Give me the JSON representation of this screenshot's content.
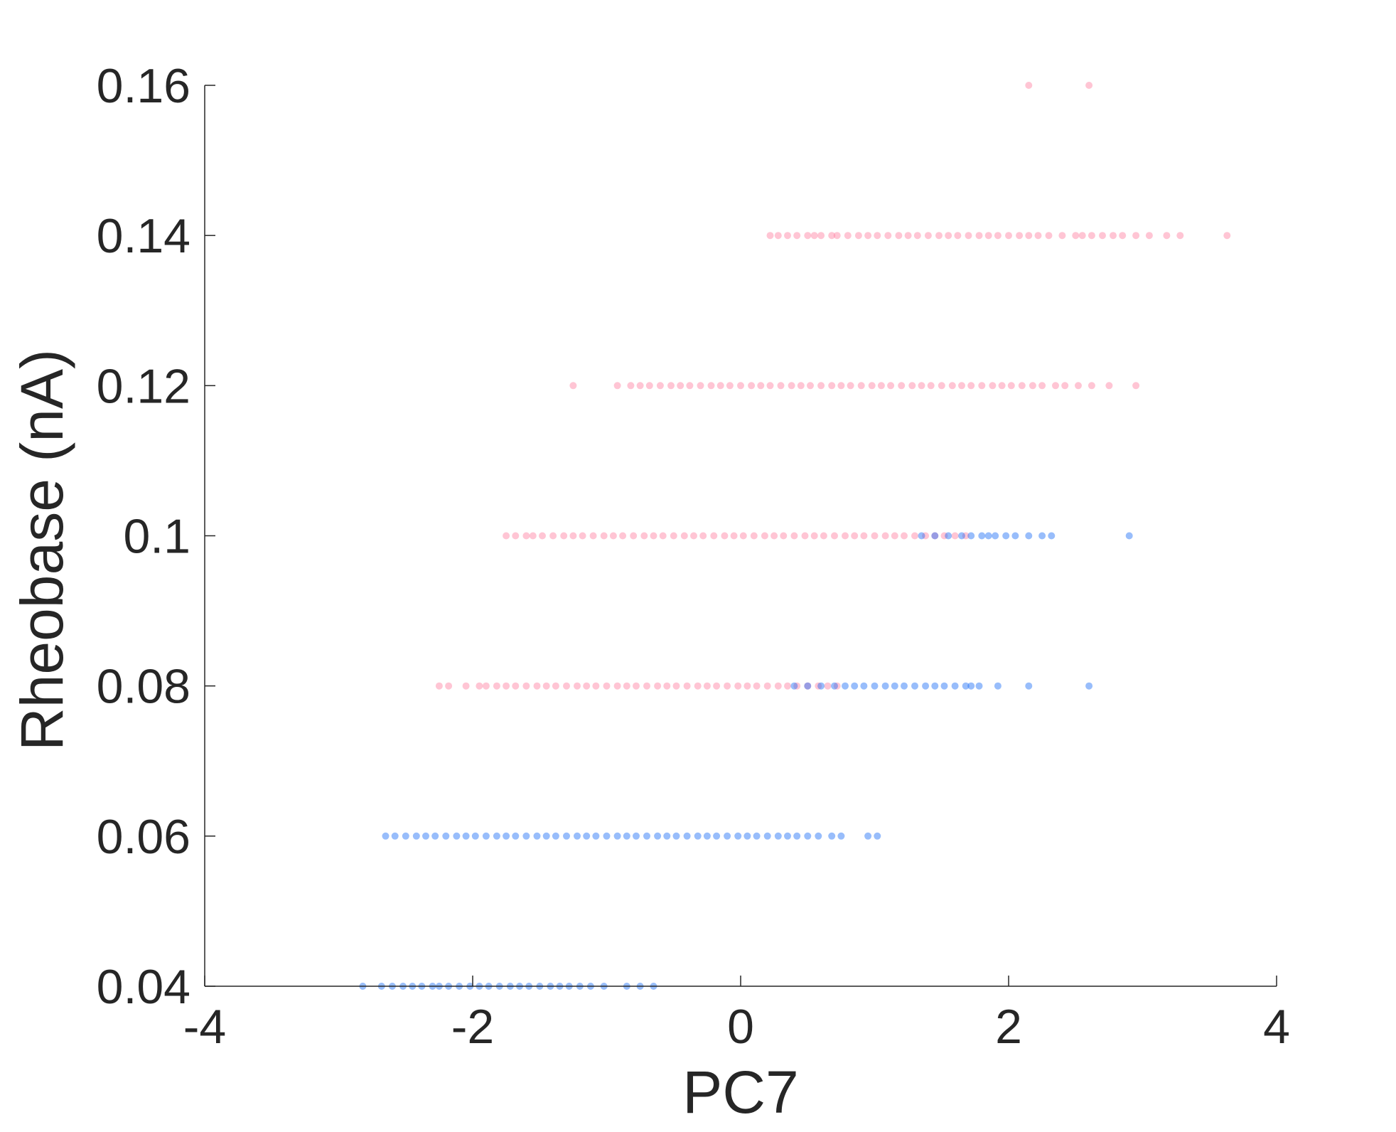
{
  "chart_data": {
    "type": "scatter",
    "title": "",
    "xlabel": "PC7",
    "ylabel": "Rheobase (nA)",
    "xlim": [
      -4,
      4
    ],
    "ylim": [
      0.04,
      0.16
    ],
    "xticks": [
      -4,
      -2,
      0,
      2,
      4
    ],
    "xtick_labels": [
      "-4",
      "-2",
      "0",
      "2",
      "4"
    ],
    "yticks": [
      0.04,
      0.06,
      0.08,
      0.1,
      0.12,
      0.14,
      0.16
    ],
    "ytick_labels": [
      "0.04",
      "0.06",
      "0.08",
      "0.1",
      "0.12",
      "0.14",
      "0.16"
    ],
    "grid": false,
    "legend": "none",
    "series": [
      {
        "color": "#FF7B9C",
        "alpha": 0.2,
        "points_by_level": [
          {
            "y": 0.16,
            "x": [
              2.15,
              2.6
            ]
          },
          {
            "y": 0.14,
            "x": [
              0.22,
              0.28,
              0.35,
              0.42,
              0.5,
              0.55,
              0.6,
              0.68,
              0.72,
              0.8,
              0.88,
              0.95,
              1.02,
              1.1,
              1.18,
              1.25,
              1.32,
              1.4,
              1.48,
              1.55,
              1.62,
              1.7,
              1.78,
              1.85,
              1.92,
              2.0,
              2.08,
              2.15,
              2.22,
              2.3,
              2.4,
              2.5,
              2.55,
              2.62,
              2.7,
              2.78,
              2.85,
              2.95,
              3.05,
              3.18,
              3.28,
              3.63
            ]
          },
          {
            "y": 0.12,
            "x": [
              -1.25,
              -0.92,
              -0.82,
              -0.75,
              -0.68,
              -0.6,
              -0.52,
              -0.45,
              -0.38,
              -0.3,
              -0.22,
              -0.15,
              -0.08,
              0.0,
              0.08,
              0.15,
              0.22,
              0.3,
              0.38,
              0.45,
              0.52,
              0.6,
              0.68,
              0.75,
              0.82,
              0.9,
              0.98,
              1.05,
              1.12,
              1.2,
              1.28,
              1.35,
              1.42,
              1.5,
              1.58,
              1.65,
              1.72,
              1.8,
              1.88,
              1.95,
              2.02,
              2.1,
              2.18,
              2.25,
              2.35,
              2.42,
              2.52,
              2.62,
              2.75,
              2.95
            ]
          },
          {
            "y": 0.1,
            "x": [
              -1.75,
              -1.68,
              -1.6,
              -1.55,
              -1.48,
              -1.4,
              -1.32,
              -1.25,
              -1.18,
              -1.1,
              -1.02,
              -0.95,
              -0.88,
              -0.8,
              -0.72,
              -0.65,
              -0.58,
              -0.5,
              -0.42,
              -0.35,
              -0.28,
              -0.2,
              -0.12,
              -0.05,
              0.02,
              0.1,
              0.18,
              0.25,
              0.32,
              0.4,
              0.48,
              0.55,
              0.62,
              0.7,
              0.78,
              0.85,
              0.92,
              1.0,
              1.08,
              1.15,
              1.22,
              1.3,
              1.38,
              1.45,
              1.52,
              1.6,
              1.68
            ]
          },
          {
            "y": 0.08,
            "x": [
              -2.25,
              -2.18,
              -2.05,
              -1.95,
              -1.9,
              -1.82,
              -1.75,
              -1.68,
              -1.6,
              -1.52,
              -1.45,
              -1.38,
              -1.3,
              -1.22,
              -1.15,
              -1.08,
              -1.0,
              -0.92,
              -0.85,
              -0.78,
              -0.7,
              -0.62,
              -0.55,
              -0.48,
              -0.4,
              -0.32,
              -0.25,
              -0.18,
              -0.1,
              -0.02,
              0.05,
              0.12,
              0.2,
              0.28,
              0.35,
              0.42,
              0.5,
              0.58,
              0.65,
              0.72
            ]
          }
        ]
      },
      {
        "color": "#1469F5",
        "alpha": 0.2,
        "points_by_level": [
          {
            "y": 0.1,
            "x": [
              1.35,
              1.45,
              1.55,
              1.65,
              1.72,
              1.8,
              1.85,
              1.9,
              1.98,
              2.05,
              2.15,
              2.25,
              2.32,
              2.9
            ]
          },
          {
            "y": 0.08,
            "x": [
              0.4,
              0.5,
              0.6,
              0.7,
              0.78,
              0.85,
              0.92,
              1.0,
              1.08,
              1.15,
              1.22,
              1.3,
              1.38,
              1.45,
              1.52,
              1.6,
              1.68,
              1.72,
              1.78,
              1.92,
              2.15,
              2.6
            ]
          },
          {
            "y": 0.06,
            "x": [
              -2.65,
              -2.58,
              -2.5,
              -2.42,
              -2.35,
              -2.28,
              -2.2,
              -2.12,
              -2.05,
              -1.98,
              -1.9,
              -1.82,
              -1.75,
              -1.68,
              -1.6,
              -1.52,
              -1.45,
              -1.38,
              -1.3,
              -1.22,
              -1.15,
              -1.08,
              -1.0,
              -0.92,
              -0.85,
              -0.78,
              -0.7,
              -0.62,
              -0.55,
              -0.48,
              -0.4,
              -0.32,
              -0.25,
              -0.18,
              -0.1,
              -0.02,
              0.05,
              0.12,
              0.2,
              0.28,
              0.35,
              0.42,
              0.5,
              0.58,
              0.68,
              0.75,
              0.95,
              1.02
            ]
          },
          {
            "y": 0.04,
            "x": [
              -2.82,
              -2.68,
              -2.6,
              -2.52,
              -2.45,
              -2.38,
              -2.3,
              -2.25,
              -2.18,
              -2.1,
              -2.02,
              -1.95,
              -1.88,
              -1.8,
              -1.72,
              -1.65,
              -1.58,
              -1.5,
              -1.42,
              -1.35,
              -1.28,
              -1.2,
              -1.12,
              -1.02,
              -0.85,
              -0.75,
              -0.65
            ]
          }
        ]
      }
    ]
  }
}
